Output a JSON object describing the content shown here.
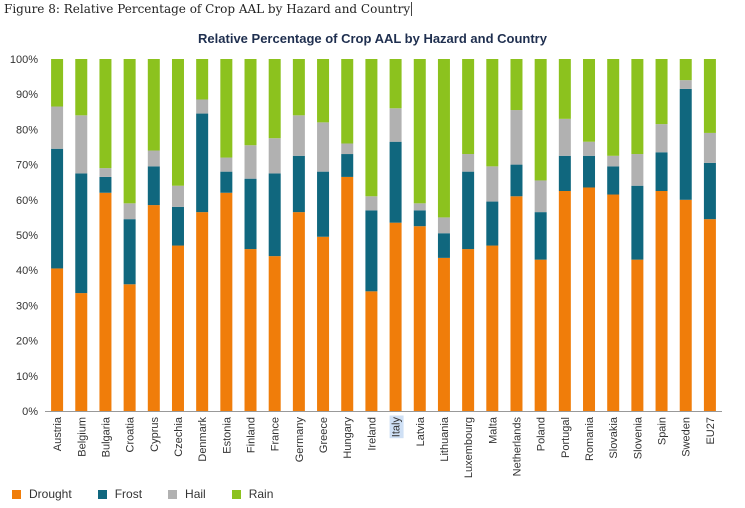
{
  "caption": "Figure 8: Relative Percentage of Crop AAL by Hazard and Country",
  "chart_data": {
    "type": "bar",
    "stacked": true,
    "title": "Relative Percentage of Crop AAL by Hazard and Country",
    "xlabel": "",
    "ylabel": "",
    "ylim": [
      0,
      100
    ],
    "yticks": [
      "0%",
      "10%",
      "20%",
      "30%",
      "40%",
      "50%",
      "60%",
      "70%",
      "80%",
      "90%",
      "100%"
    ],
    "grid": false,
    "legend_position": "bottom-left",
    "highlighted_category": "Italy",
    "categories": [
      "Austria",
      "Belgium",
      "Bulgaria",
      "Croatia",
      "Cyprus",
      "Czechia",
      "Denmark",
      "Estonia",
      "Finland",
      "France",
      "Germany",
      "Greece",
      "Hungary",
      "Ireland",
      "Italy",
      "Latvia",
      "Lithuania",
      "Luxembourg",
      "Malta",
      "Netherlands",
      "Poland",
      "Portugal",
      "Romania",
      "Slovakia",
      "Slovenia",
      "Spain",
      "Sweden",
      "EU27"
    ],
    "series": [
      {
        "name": "Drought",
        "color": "#f07d0a",
        "values": [
          40.5,
          33.5,
          62,
          36,
          58.5,
          47,
          56.5,
          62,
          46,
          44,
          56.5,
          49.5,
          66.5,
          34,
          53.5,
          52.5,
          43.5,
          46,
          47,
          61,
          43,
          62.5,
          63.5,
          61.5,
          43,
          62.5,
          60,
          54.5
        ]
      },
      {
        "name": "Frost",
        "color": "#10677e",
        "values": [
          34,
          34,
          4.5,
          18.5,
          11,
          11,
          28,
          6,
          20,
          23.5,
          16,
          18.5,
          6.5,
          23,
          23,
          4.5,
          7,
          22,
          12.5,
          9,
          13.5,
          10,
          9,
          8,
          21,
          11,
          31.5,
          16
        ]
      },
      {
        "name": "Hail",
        "color": "#b1b1b1",
        "values": [
          12,
          16.5,
          2.5,
          4.5,
          4.5,
          6,
          4,
          4,
          9.5,
          10,
          11.5,
          14,
          3,
          4,
          9.5,
          2,
          4.5,
          5,
          10,
          15.5,
          9,
          10.5,
          4,
          3,
          9,
          8,
          2.5,
          8.5
        ]
      },
      {
        "name": "Rain",
        "color": "#8cc21e",
        "values": [
          13.5,
          16,
          31,
          41,
          26,
          36,
          11.5,
          28,
          24.5,
          22.5,
          16,
          18,
          24,
          39,
          14,
          41,
          45,
          27,
          30.5,
          14.5,
          34.5,
          17,
          23.5,
          27.5,
          27,
          18.5,
          6,
          21
        ]
      }
    ]
  }
}
